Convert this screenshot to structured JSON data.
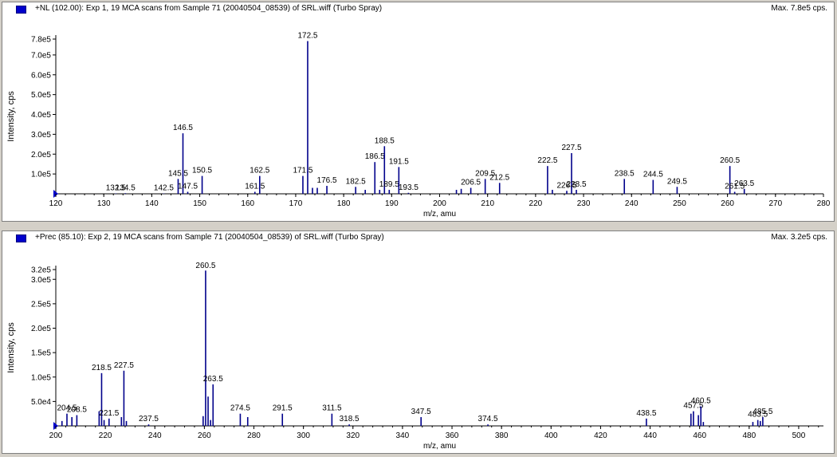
{
  "chart_data": [
    {
      "type": "bar",
      "title": "+NL (102.00): Exp 1, 19 MCA scans from Sample 71 (20040504_08539) of SRL.wiff (Turbo Spray)",
      "max_label": "Max. 7.8e5 cps.",
      "xlabel": "m/z, amu",
      "ylabel": "Intensity, cps",
      "xlim": [
        120,
        280
      ],
      "ylim": [
        0,
        780000
      ],
      "x_ticks": [
        120,
        130,
        140,
        150,
        160,
        170,
        180,
        190,
        200,
        210,
        220,
        230,
        240,
        250,
        260,
        270,
        280
      ],
      "y_ticks": [
        {
          "value": 100000,
          "label": "1.0e5"
        },
        {
          "value": 200000,
          "label": "2.0e5"
        },
        {
          "value": 300000,
          "label": "3.0e5"
        },
        {
          "value": 400000,
          "label": "4.0e5"
        },
        {
          "value": 500000,
          "label": "5.0e5"
        },
        {
          "value": 600000,
          "label": "6.0e5"
        },
        {
          "value": 700000,
          "label": "7.0e5"
        },
        {
          "value": 780000,
          "label": "7.8e5"
        }
      ],
      "peaks": [
        {
          "x": 132.5,
          "y": 2000,
          "label": "132.5"
        },
        {
          "x": 134.5,
          "y": 3000,
          "label": "134.5"
        },
        {
          "x": 142.5,
          "y": 2000,
          "label": "142.5"
        },
        {
          "x": 145.5,
          "y": 75000,
          "label": "145.5"
        },
        {
          "x": 146.5,
          "y": 305000,
          "label": "146.5"
        },
        {
          "x": 147.5,
          "y": 10000,
          "label": "147.5"
        },
        {
          "x": 150.5,
          "y": 90000,
          "label": "150.5"
        },
        {
          "x": 161.5,
          "y": 10000,
          "label": "161.5"
        },
        {
          "x": 162.5,
          "y": 90000,
          "label": "162.5"
        },
        {
          "x": 171.5,
          "y": 90000,
          "label": "171.5"
        },
        {
          "x": 172.5,
          "y": 770000,
          "label": "172.5"
        },
        {
          "x": 173.5,
          "y": 30000
        },
        {
          "x": 174.5,
          "y": 30000
        },
        {
          "x": 176.5,
          "y": 40000,
          "label": "176.5"
        },
        {
          "x": 182.5,
          "y": 35000,
          "label": "182.5"
        },
        {
          "x": 184.5,
          "y": 20000
        },
        {
          "x": 186.5,
          "y": 160000,
          "label": "186.5"
        },
        {
          "x": 187.5,
          "y": 20000
        },
        {
          "x": 188.5,
          "y": 240000,
          "label": "188.5"
        },
        {
          "x": 189.5,
          "y": 20000,
          "label": "189.5"
        },
        {
          "x": 191.5,
          "y": 135000,
          "label": "191.5"
        },
        {
          "x": 193.5,
          "y": 5000,
          "label": "193.5"
        },
        {
          "x": 203.5,
          "y": 20000
        },
        {
          "x": 204.5,
          "y": 25000
        },
        {
          "x": 206.5,
          "y": 30000,
          "label": "206.5"
        },
        {
          "x": 209.5,
          "y": 75000,
          "label": "209.5"
        },
        {
          "x": 212.5,
          "y": 55000,
          "label": "212.5"
        },
        {
          "x": 222.5,
          "y": 140000,
          "label": "222.5"
        },
        {
          "x": 223.5,
          "y": 20000
        },
        {
          "x": 226.5,
          "y": 15000,
          "label": "226.5"
        },
        {
          "x": 227.5,
          "y": 205000,
          "label": "227.5"
        },
        {
          "x": 228.5,
          "y": 20000,
          "label": "228.5"
        },
        {
          "x": 238.5,
          "y": 75000,
          "label": "238.5"
        },
        {
          "x": 244.5,
          "y": 70000,
          "label": "244.5"
        },
        {
          "x": 249.5,
          "y": 35000,
          "label": "249.5"
        },
        {
          "x": 260.5,
          "y": 140000,
          "label": "260.5"
        },
        {
          "x": 261.5,
          "y": 10000,
          "label": "261.5"
        },
        {
          "x": 263.5,
          "y": 25000,
          "label": "263.5"
        }
      ]
    },
    {
      "type": "bar",
      "title": "+Prec (85.10): Exp 2, 19 MCA scans from Sample 71 (20040504_08539) of SRL.wiff (Turbo Spray)",
      "max_label": "Max. 3.2e5 cps.",
      "xlabel": "m/z, amu",
      "ylabel": "Intensity, cps",
      "xlim": [
        200,
        510
      ],
      "ylim": [
        0,
        320000
      ],
      "x_ticks": [
        200,
        220,
        240,
        260,
        280,
        300,
        320,
        340,
        360,
        380,
        400,
        420,
        440,
        460,
        480,
        500
      ],
      "y_ticks": [
        {
          "value": 50000,
          "label": "5.0e4"
        },
        {
          "value": 100000,
          "label": "1.0e5"
        },
        {
          "value": 150000,
          "label": "1.5e5"
        },
        {
          "value": 200000,
          "label": "2.0e5"
        },
        {
          "value": 250000,
          "label": "2.5e5"
        },
        {
          "value": 300000,
          "label": "3.0e5"
        },
        {
          "value": 320000,
          "label": "3.2e5"
        }
      ],
      "peaks": [
        {
          "x": 202.5,
          "y": 10000
        },
        {
          "x": 204.5,
          "y": 25000,
          "label": "204.5"
        },
        {
          "x": 206.5,
          "y": 18000
        },
        {
          "x": 208.5,
          "y": 22000,
          "label": "208.5"
        },
        {
          "x": 217.5,
          "y": 30000
        },
        {
          "x": 218.5,
          "y": 108000,
          "label": "218.5"
        },
        {
          "x": 219.5,
          "y": 12000
        },
        {
          "x": 221.5,
          "y": 15000,
          "label": "221.5"
        },
        {
          "x": 226.5,
          "y": 18000
        },
        {
          "x": 227.5,
          "y": 113000,
          "label": "227.5"
        },
        {
          "x": 228.5,
          "y": 10000
        },
        {
          "x": 237.5,
          "y": 3000,
          "label": "237.5"
        },
        {
          "x": 259.5,
          "y": 20000
        },
        {
          "x": 260.5,
          "y": 318000,
          "label": "260.5"
        },
        {
          "x": 261.5,
          "y": 60000
        },
        {
          "x": 262.5,
          "y": 12000
        },
        {
          "x": 263.5,
          "y": 85000,
          "label": "263.5"
        },
        {
          "x": 274.5,
          "y": 25000,
          "label": "274.5"
        },
        {
          "x": 277.5,
          "y": 18000
        },
        {
          "x": 291.5,
          "y": 25000,
          "label": "291.5"
        },
        {
          "x": 311.5,
          "y": 25000,
          "label": "311.5"
        },
        {
          "x": 318.5,
          "y": 3000,
          "label": "318.5"
        },
        {
          "x": 347.5,
          "y": 18000,
          "label": "347.5"
        },
        {
          "x": 374.5,
          "y": 3000,
          "label": "374.5"
        },
        {
          "x": 438.5,
          "y": 15000,
          "label": "438.5"
        },
        {
          "x": 456.5,
          "y": 25000
        },
        {
          "x": 457.5,
          "y": 30000,
          "label": "457.5"
        },
        {
          "x": 459.5,
          "y": 22000
        },
        {
          "x": 460.5,
          "y": 40000,
          "label": "460.5"
        },
        {
          "x": 461.5,
          "y": 8000
        },
        {
          "x": 481.5,
          "y": 8000
        },
        {
          "x": 483.5,
          "y": 12000,
          "label": "483.5"
        },
        {
          "x": 484.5,
          "y": 10000
        },
        {
          "x": 485.5,
          "y": 18000,
          "label": "485.5"
        }
      ]
    }
  ],
  "colors": {
    "peak": "#00008b",
    "frame": "#808080",
    "background": "#d4d0c8",
    "legend_swatch": "#0000cc"
  }
}
